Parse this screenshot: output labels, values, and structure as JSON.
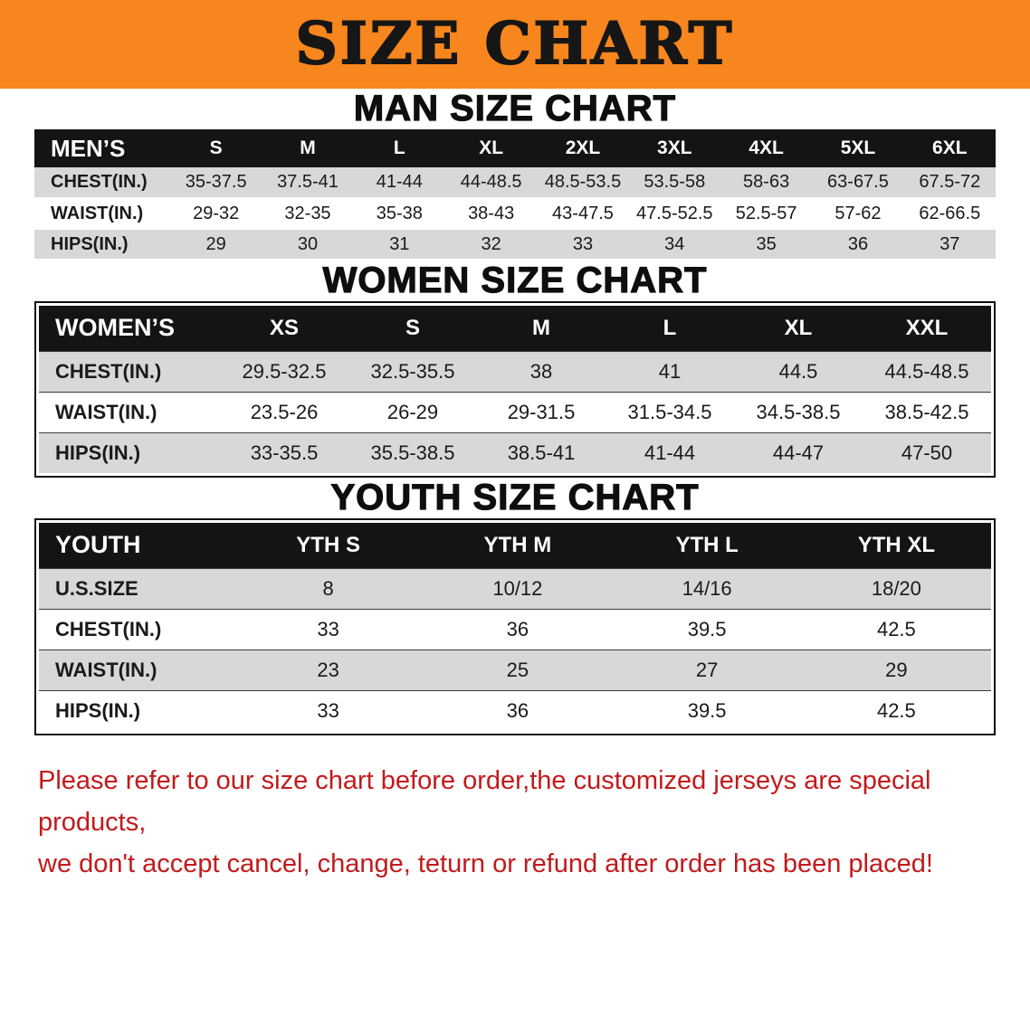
{
  "banner": {
    "title": "SIZE CHART"
  },
  "colors": {
    "banner_bg": "#F6861D",
    "accent_black": "#141414",
    "row_gray": "#d8d8d8",
    "footer_red": "#c21a1c"
  },
  "sections": [
    {
      "id": "men",
      "heading": "MAN SIZE CHART",
      "table": {
        "header": [
          "MEN’S",
          "S",
          "M",
          "L",
          "XL",
          "2XL",
          "3XL",
          "4XL",
          "5XL",
          "6XL"
        ],
        "rows": [
          [
            "CHEST(IN.)",
            "35-37.5",
            "37.5-41",
            "41-44",
            "44-48.5",
            "48.5-53.5",
            "53.5-58",
            "58-63",
            "63-67.5",
            "67.5-72"
          ],
          [
            "WAIST(IN.)",
            "29-32",
            "32-35",
            "35-38",
            "38-43",
            "43-47.5",
            "47.5-52.5",
            "52.5-57",
            "57-62",
            "62-66.5"
          ],
          [
            "HIPS(IN.)",
            "29",
            "30",
            "31",
            "32",
            "33",
            "34",
            "35",
            "36",
            "37"
          ]
        ]
      }
    },
    {
      "id": "women",
      "heading": "WOMEN SIZE CHART",
      "table": {
        "header": [
          "WOMEN’S",
          "XS",
          "S",
          "M",
          "L",
          "XL",
          "XXL"
        ],
        "rows": [
          [
            "CHEST(IN.)",
            "29.5-32.5",
            "32.5-35.5",
            "38",
            "41",
            "44.5",
            "44.5-48.5"
          ],
          [
            "WAIST(IN.)",
            "23.5-26",
            "26-29",
            "29-31.5",
            "31.5-34.5",
            "34.5-38.5",
            "38.5-42.5"
          ],
          [
            "HIPS(IN.)",
            "33-35.5",
            "35.5-38.5",
            "38.5-41",
            "41-44",
            "44-47",
            "47-50"
          ]
        ]
      }
    },
    {
      "id": "youth",
      "heading": "YOUTH SIZE CHART",
      "table": {
        "header": [
          "YOUTH",
          "YTH S",
          "YTH M",
          "YTH L",
          "YTH XL"
        ],
        "rows": [
          [
            "U.S.SIZE",
            "8",
            "10/12",
            "14/16",
            "18/20"
          ],
          [
            "CHEST(IN.)",
            "33",
            "36",
            "39.5",
            "42.5"
          ],
          [
            "WAIST(IN.)",
            "23",
            "25",
            "27",
            "29"
          ],
          [
            "HIPS(IN.)",
            "33",
            "36",
            "39.5",
            "42.5"
          ]
        ]
      }
    }
  ],
  "footer": {
    "lines": [
      "Please refer to our size chart before order,the customized jerseys are special products,",
      "we don't accept cancel, change, teturn or refund after order has been placed!"
    ]
  }
}
